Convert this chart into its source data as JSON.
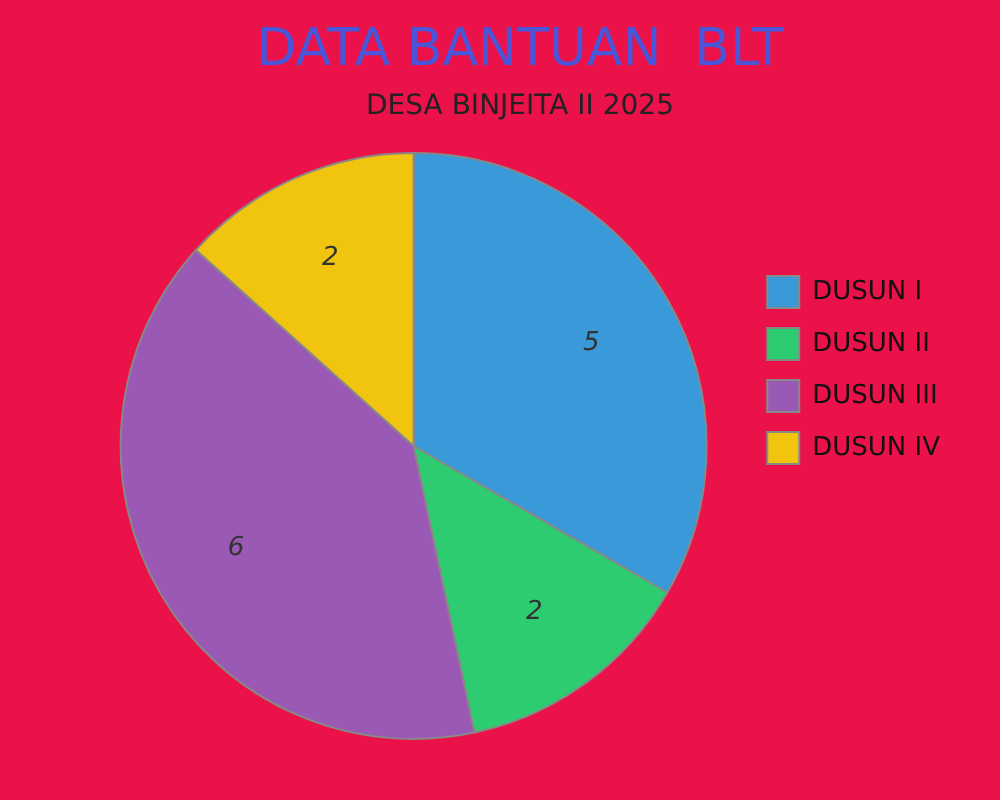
{
  "chart_data": {
    "type": "pie",
    "title": "DATA BANTUAN  BLT",
    "subtitle": "DESA BINJEITA II 2025",
    "categories": [
      "DUSUN I",
      "DUSUN II",
      "DUSUN III",
      "DUSUN IV"
    ],
    "values": [
      5,
      2,
      6,
      2
    ],
    "colors": [
      "#3a9ad9",
      "#2ecc71",
      "#9b59b6",
      "#f1c40f"
    ],
    "data_labels": true,
    "legend": "right"
  }
}
